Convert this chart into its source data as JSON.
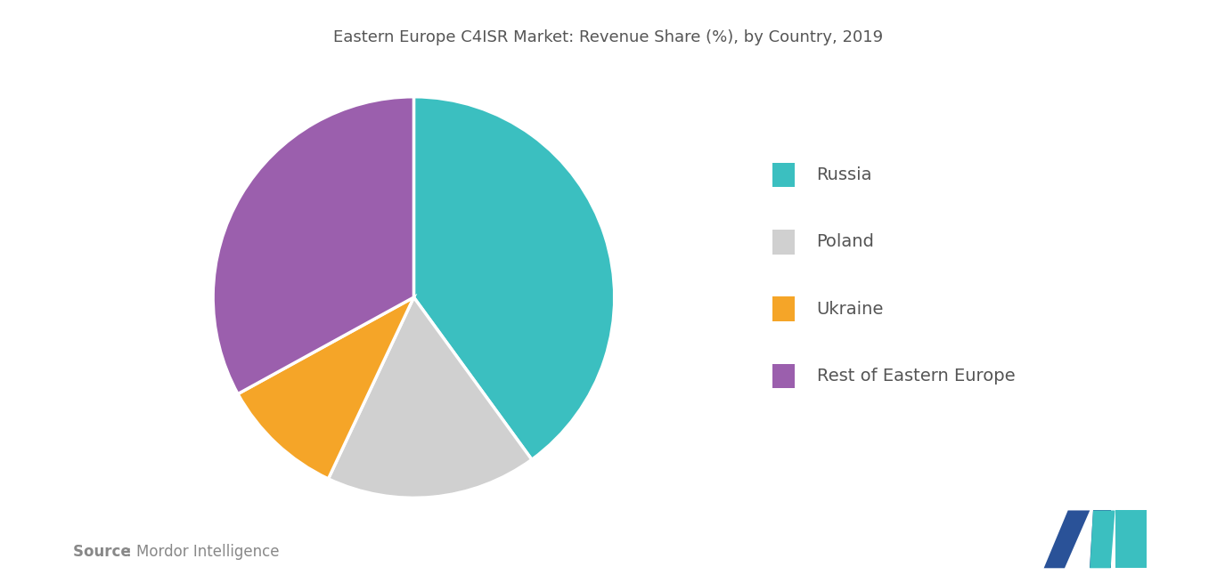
{
  "title": "Eastern Europe C4ISR Market: Revenue Share (%), by Country, 2019",
  "labels": [
    "Russia",
    "Poland",
    "Ukraine",
    "Rest of Eastern Europe"
  ],
  "values": [
    40,
    17,
    10,
    33
  ],
  "colors": [
    "#3bbfc0",
    "#d0d0d0",
    "#f5a528",
    "#9b5fad"
  ],
  "legend_labels": [
    "Russia",
    "Poland",
    "Ukraine",
    "Rest of Eastern Europe"
  ],
  "source_bold": "Source ",
  "source_normal": ": Mordor Intelligence",
  "background_color": "#ffffff",
  "title_fontsize": 13,
  "legend_fontsize": 14,
  "source_fontsize": 12,
  "startangle": 90,
  "logo_m_dark": "#2a5298",
  "logo_m_teal": "#3bbfc0",
  "text_color": "#555555",
  "source_color": "#888888"
}
